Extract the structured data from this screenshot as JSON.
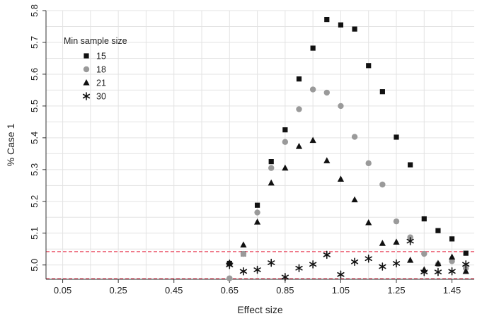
{
  "chart_data": {
    "type": "scatter",
    "xlabel": "Effect size",
    "ylabel": "% Case 1",
    "x_ticks": [
      0.05,
      0.25,
      0.45,
      0.65,
      0.85,
      1.05,
      1.25,
      1.45
    ],
    "y_ticks": [
      5.0,
      5.1,
      5.2,
      5.3,
      5.4,
      5.5,
      5.6,
      5.7,
      5.8
    ],
    "xlim": [
      -0.01,
      1.53
    ],
    "ylim": [
      4.955,
      5.8
    ],
    "grid": true,
    "legend": {
      "title": "Min sample size",
      "position": "top-left"
    },
    "reference_lines": [
      {
        "y": 5.042,
        "color": "#e8425a"
      },
      {
        "y": 4.957,
        "color": "#e8425a"
      }
    ],
    "series": [
      {
        "name": "15",
        "marker": "square",
        "color": "#111111",
        "x": [
          0.65,
          0.7,
          0.75,
          0.8,
          0.85,
          0.9,
          0.95,
          1.0,
          1.05,
          1.1,
          1.15,
          1.2,
          1.25,
          1.3,
          1.35,
          1.4,
          1.45,
          1.5
        ],
        "y": [
          5.005,
          5.035,
          5.188,
          5.325,
          5.425,
          5.585,
          5.682,
          5.772,
          5.755,
          5.742,
          5.627,
          5.545,
          5.402,
          5.315,
          5.145,
          5.108,
          5.082,
          5.037
        ]
      },
      {
        "name": "18",
        "marker": "circle",
        "color": "#9a9a9a",
        "x": [
          0.65,
          0.7,
          0.75,
          0.8,
          0.85,
          0.9,
          0.95,
          1.0,
          1.05,
          1.1,
          1.15,
          1.2,
          1.25,
          1.3,
          1.35,
          1.4,
          1.45,
          1.5
        ],
        "y": [
          4.958,
          5.035,
          5.165,
          5.305,
          5.387,
          5.49,
          5.552,
          5.542,
          5.5,
          5.403,
          5.32,
          5.253,
          5.137,
          5.087,
          5.035,
          5.002,
          5.012,
          4.99
        ]
      },
      {
        "name": "21",
        "marker": "triangle",
        "color": "#111111",
        "x": [
          0.65,
          0.7,
          0.75,
          0.8,
          0.85,
          0.9,
          0.95,
          1.0,
          1.05,
          1.1,
          1.15,
          1.2,
          1.25,
          1.3,
          1.35,
          1.4,
          1.45,
          1.5
        ],
        "y": [
          5.007,
          5.063,
          5.135,
          5.258,
          5.305,
          5.373,
          5.392,
          5.328,
          5.27,
          5.205,
          5.133,
          5.068,
          5.072,
          5.015,
          4.985,
          5.005,
          5.025,
          4.98
        ]
      },
      {
        "name": "30",
        "marker": "asterisk",
        "color": "#111111",
        "x": [
          0.65,
          0.7,
          0.75,
          0.8,
          0.85,
          0.9,
          0.95,
          1.0,
          1.05,
          1.1,
          1.15,
          1.2,
          1.25,
          1.3,
          1.35,
          1.4,
          1.45,
          1.5
        ],
        "y": [
          5.0,
          4.98,
          4.985,
          5.007,
          4.962,
          4.99,
          5.002,
          5.032,
          4.97,
          5.01,
          5.02,
          4.995,
          5.005,
          5.075,
          4.978,
          4.978,
          4.98,
          5.002
        ]
      }
    ]
  }
}
